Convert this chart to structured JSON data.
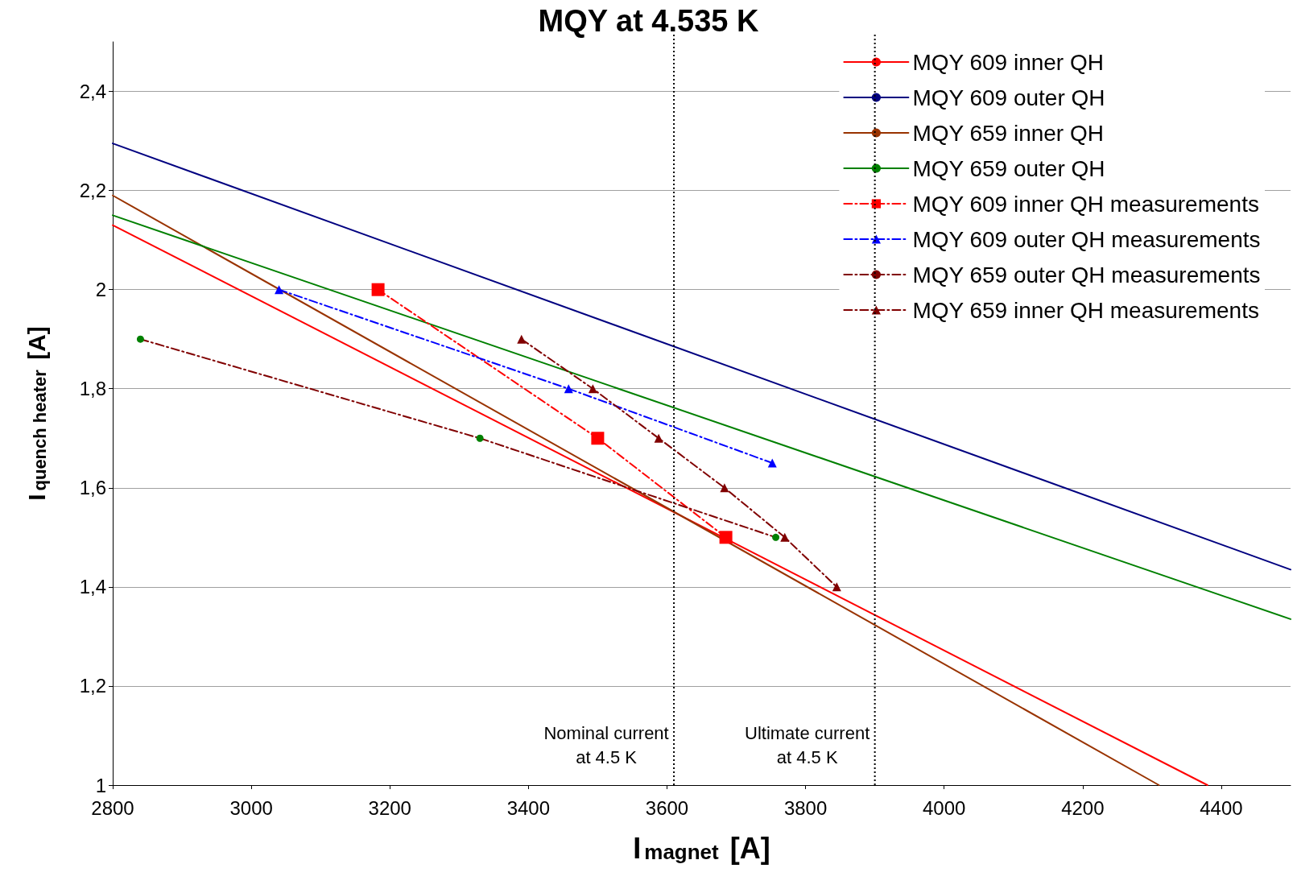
{
  "chart_data": {
    "type": "line",
    "title": "MQY at 4.535 K",
    "xlabel": "I$_{magnet}$ [A]",
    "ylabel": "I$_{quench heater}$ [A]",
    "xlim": [
      2800,
      4500
    ],
    "xticks": [
      2800,
      3000,
      3200,
      3400,
      3600,
      3800,
      4000,
      4200,
      4400
    ],
    "ylim": [
      1,
      2.5
    ],
    "yticks": [
      {
        "value": 1,
        "label": "1"
      },
      {
        "value": 1.2,
        "label": "1,2"
      },
      {
        "value": 1.4,
        "label": "1,4"
      },
      {
        "value": 1.6,
        "label": "1,6"
      },
      {
        "value": 1.8,
        "label": "1,8"
      },
      {
        "value": 2,
        "label": "2"
      },
      {
        "value": 2.2,
        "label": "2,2"
      },
      {
        "value": 2.4,
        "label": "2,4"
      }
    ],
    "grid": "y",
    "legend": "top right",
    "series": [
      {
        "name": "MQY 609 inner QH",
        "color": "#ff0000",
        "marker": "none",
        "line_style": "solid",
        "x": [
          2800,
          4380
        ],
        "values": [
          2.13,
          1.0
        ]
      },
      {
        "name": "MQY 609 outer QH",
        "color": "#000080",
        "marker": "none",
        "line_style": "solid",
        "x": [
          2800,
          4500
        ],
        "values": [
          2.295,
          1.435
        ]
      },
      {
        "name": "MQY 659 inner QH",
        "color": "#993300",
        "marker": "none",
        "line_style": "solid",
        "x": [
          2800,
          4310
        ],
        "values": [
          2.19,
          1.0
        ]
      },
      {
        "name": "MQY 659 outer QH",
        "color": "#008000",
        "marker": "none",
        "line_style": "solid",
        "x": [
          2800,
          4500
        ],
        "values": [
          2.15,
          1.335
        ]
      },
      {
        "name": "MQY 609 inner QH measurements",
        "color": "#ff0000",
        "marker": "square",
        "line_style": "dashed",
        "x": [
          3183,
          3500,
          3685
        ],
        "values": [
          2.0,
          1.7,
          1.5
        ]
      },
      {
        "name": "MQY 609 outer QH measurements",
        "color": "#0000ff",
        "marker": "triangle",
        "line_style": "dashed",
        "x": [
          3040,
          3458,
          3752
        ],
        "values": [
          2.0,
          1.8,
          1.65
        ]
      },
      {
        "name": "MQY 659 outer QH measurements",
        "color": "#800000",
        "colors": [
          "#008000",
          "#008000",
          "#008000"
        ],
        "marker": "circle",
        "line_style": "dashed",
        "x": [
          2840,
          3330,
          3757
        ],
        "values": [
          1.9,
          1.7,
          1.5
        ]
      },
      {
        "name": "MQY 659 inner QH measurements",
        "color": "#800000",
        "marker": "triangle",
        "line_style": "dashed",
        "x": [
          3390,
          3493,
          3588,
          3683,
          3770,
          3845
        ],
        "values": [
          1.9,
          1.8,
          1.7,
          1.6,
          1.5,
          1.4
        ]
      }
    ],
    "ref_lines": [
      {
        "axis": "x",
        "value": 3610,
        "label": "Nominal current\nat 4.5 K",
        "line_style": "dotted",
        "color": "#000000"
      },
      {
        "axis": "x",
        "value": 3900,
        "label": "Ultimate current\nat 4.5 K",
        "line_style": "dotted",
        "color": "#000000"
      }
    ]
  }
}
